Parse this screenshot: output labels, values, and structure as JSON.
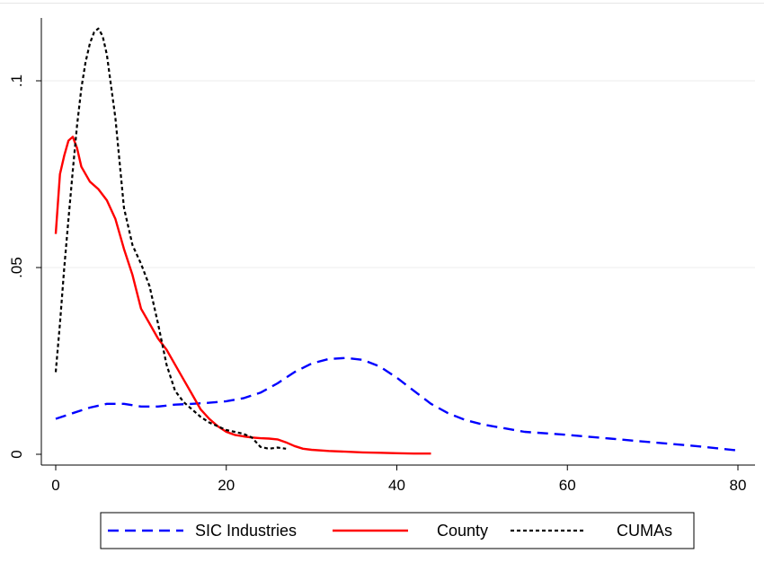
{
  "chart_data": {
    "type": "line",
    "title": "",
    "xlabel": "",
    "ylabel": "",
    "xlim": [
      0,
      80
    ],
    "ylim": [
      0,
      0.115
    ],
    "x_ticks": [
      0,
      20,
      40,
      60,
      80
    ],
    "x_tick_labels": [
      "0",
      "20",
      "40",
      "60",
      "80"
    ],
    "y_ticks": [
      0,
      0.05,
      0.1
    ],
    "y_tick_labels": [
      "0",
      ".05",
      ".1"
    ],
    "grid": "horizontal",
    "legend_position": "bottom",
    "series": [
      {
        "name": "SIC Industries",
        "color": "#0000ff",
        "style": "dashed",
        "x": [
          0,
          2,
          4,
          6,
          8,
          10,
          12,
          14,
          16,
          18,
          20,
          22,
          24,
          26,
          28,
          30,
          32,
          34,
          36,
          38,
          40,
          42,
          44,
          46,
          48,
          50,
          55,
          60,
          65,
          70,
          75,
          80
        ],
        "y": [
          0.0095,
          0.011,
          0.0125,
          0.0135,
          0.0135,
          0.0128,
          0.0128,
          0.0133,
          0.0135,
          0.0138,
          0.0142,
          0.015,
          0.0165,
          0.019,
          0.022,
          0.0243,
          0.0255,
          0.0258,
          0.0253,
          0.0235,
          0.0205,
          0.017,
          0.0135,
          0.011,
          0.0092,
          0.008,
          0.006,
          0.0052,
          0.0042,
          0.0032,
          0.0022,
          0.001
        ]
      },
      {
        "name": "County",
        "color": "#ff0000",
        "style": "solid",
        "x": [
          0,
          0.5,
          1,
          1.5,
          2,
          2.5,
          3,
          4,
          5,
          6,
          7,
          8,
          9,
          10,
          11,
          12,
          13,
          14,
          15,
          16,
          17,
          18,
          19,
          20,
          21,
          22,
          23,
          24,
          25,
          26,
          27,
          28,
          29,
          30,
          32,
          34,
          36,
          38,
          40,
          42,
          44
        ],
        "y": [
          0.059,
          0.075,
          0.08,
          0.084,
          0.085,
          0.082,
          0.077,
          0.073,
          0.071,
          0.068,
          0.063,
          0.055,
          0.048,
          0.039,
          0.035,
          0.031,
          0.028,
          0.024,
          0.02,
          0.016,
          0.012,
          0.0095,
          0.0075,
          0.006,
          0.0052,
          0.0048,
          0.0045,
          0.0043,
          0.0042,
          0.004,
          0.0032,
          0.0022,
          0.0015,
          0.0012,
          0.0009,
          0.0007,
          0.0005,
          0.0004,
          0.0003,
          0.0002,
          0.0002
        ]
      },
      {
        "name": "CUMAs",
        "color": "#000000",
        "style": "dotted",
        "x": [
          0,
          0.5,
          1,
          1.5,
          2,
          2.5,
          3,
          3.5,
          4,
          4.5,
          5,
          5.5,
          6,
          7,
          8,
          9,
          10,
          11,
          12,
          13,
          14,
          15,
          16,
          17,
          18,
          19,
          20,
          21,
          22,
          23,
          24,
          25,
          26,
          27
        ],
        "y": [
          0.022,
          0.035,
          0.05,
          0.063,
          0.076,
          0.088,
          0.098,
          0.105,
          0.11,
          0.113,
          0.114,
          0.112,
          0.107,
          0.09,
          0.066,
          0.056,
          0.051,
          0.045,
          0.035,
          0.024,
          0.017,
          0.014,
          0.012,
          0.01,
          0.0085,
          0.0075,
          0.0065,
          0.006,
          0.0055,
          0.0045,
          0.002,
          0.0015,
          0.0018,
          0.0015
        ]
      }
    ]
  }
}
